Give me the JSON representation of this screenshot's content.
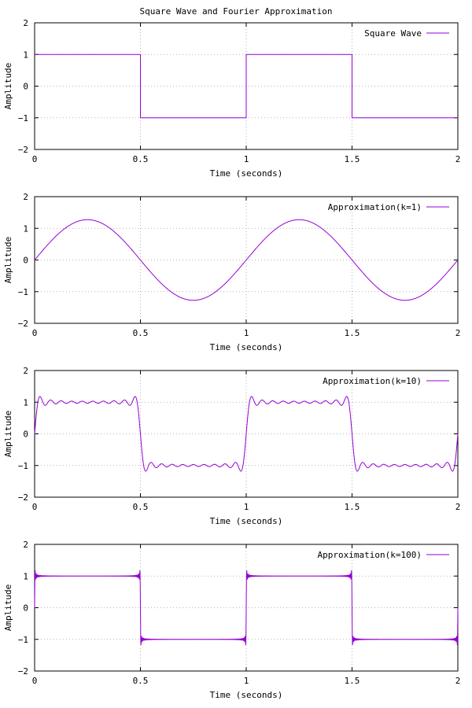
{
  "figure": {
    "title": "Square Wave and Fourier Approximation"
  },
  "styles": {
    "series_color": "#9400d3",
    "grid_color": "#a0a0a0",
    "axis_color": "#000000"
  },
  "chart_data": [
    {
      "type": "line",
      "function": "square",
      "xlabel": "Time (seconds)",
      "ylabel": "Amplitude",
      "xlim": [
        0,
        2
      ],
      "ylim": [
        -2,
        2
      ],
      "xticks": [
        0,
        0.5,
        1,
        1.5,
        2
      ],
      "xtick_labels": [
        "0",
        "0.5",
        "1",
        "1.5",
        "2"
      ],
      "yticks": [
        -2,
        -1,
        0,
        1,
        2
      ],
      "ytick_labels": [
        "−2",
        "−1",
        "0",
        "1",
        "2"
      ],
      "grid": true,
      "legend_position": "top-right",
      "series": [
        {
          "name": "Square Wave",
          "frequency_hz": 1,
          "amplitude": 1
        }
      ]
    },
    {
      "type": "line",
      "function": "fourier",
      "xlabel": "Time (seconds)",
      "ylabel": "Amplitude",
      "xlim": [
        0,
        2
      ],
      "ylim": [
        -2,
        2
      ],
      "xticks": [
        0,
        0.5,
        1,
        1.5,
        2
      ],
      "xtick_labels": [
        "0",
        "0.5",
        "1",
        "1.5",
        "2"
      ],
      "yticks": [
        -2,
        -1,
        0,
        1,
        2
      ],
      "ytick_labels": [
        "−2",
        "−1",
        "0",
        "1",
        "2"
      ],
      "grid": true,
      "legend_position": "top-right",
      "series": [
        {
          "name": "Approximation(k=1)",
          "frequency_hz": 1,
          "harmonics": 1
        }
      ]
    },
    {
      "type": "line",
      "function": "fourier",
      "xlabel": "Time (seconds)",
      "ylabel": "Amplitude",
      "xlim": [
        0,
        2
      ],
      "ylim": [
        -2,
        2
      ],
      "xticks": [
        0,
        0.5,
        1,
        1.5,
        2
      ],
      "xtick_labels": [
        "0",
        "0.5",
        "1",
        "1.5",
        "2"
      ],
      "yticks": [
        -2,
        -1,
        0,
        1,
        2
      ],
      "ytick_labels": [
        "−2",
        "−1",
        "0",
        "1",
        "2"
      ],
      "grid": true,
      "legend_position": "top-right",
      "series": [
        {
          "name": "Approximation(k=10)",
          "frequency_hz": 1,
          "harmonics": 10
        }
      ]
    },
    {
      "type": "line",
      "function": "fourier",
      "xlabel": "Time (seconds)",
      "ylabel": "Amplitude",
      "xlim": [
        0,
        2
      ],
      "ylim": [
        -2,
        2
      ],
      "xticks": [
        0,
        0.5,
        1,
        1.5,
        2
      ],
      "xtick_labels": [
        "0",
        "0.5",
        "1",
        "1.5",
        "2"
      ],
      "yticks": [
        -2,
        -1,
        0,
        1,
        2
      ],
      "ytick_labels": [
        "−2",
        "−1",
        "0",
        "1",
        "2"
      ],
      "grid": true,
      "legend_position": "top-right",
      "series": [
        {
          "name": "Approximation(k=100)",
          "frequency_hz": 1,
          "harmonics": 100
        }
      ]
    }
  ]
}
